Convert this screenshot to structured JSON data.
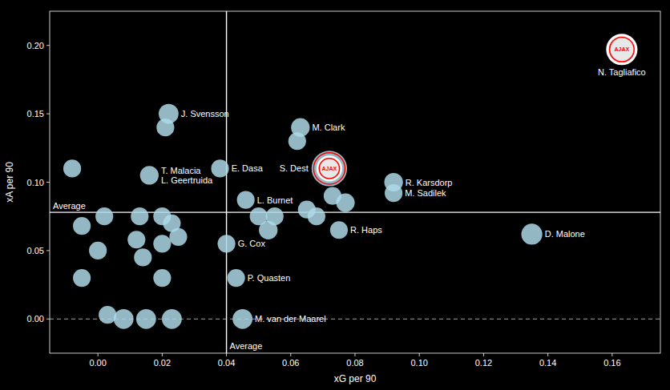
{
  "chart_data": {
    "type": "scatter",
    "xlabel": "xG per 90",
    "ylabel": "xA per 90",
    "xlim": [
      -0.015,
      0.175
    ],
    "ylim": [
      -0.025,
      0.225
    ],
    "xticks": [
      {
        "value": 0,
        "label": "0.00"
      },
      0.02,
      0.04,
      0.06,
      0.08,
      {
        "value": 0.1,
        "label": "0.10"
      },
      0.12,
      0.14,
      0.16
    ],
    "yticks": [
      {
        "value": 0,
        "label": "0.00"
      },
      0.05,
      {
        "value": 0.1,
        "label": "0.10"
      },
      0.15,
      {
        "value": 0.2,
        "label": "0.20"
      }
    ],
    "grid": false,
    "series": [
      {
        "color": "#add8e6",
        "x": [
          -0.008,
          0.002,
          -0.005,
          0,
          -0.005,
          0.003,
          0.008,
          0.013,
          0.012,
          0.014,
          0.016,
          0.015,
          0.02,
          0.02,
          0.02,
          0.022,
          0.021,
          0.023,
          0.025,
          0.023,
          0.038,
          0.04,
          0.043,
          0.045,
          0.046,
          0.05,
          0.053,
          0.055,
          0.063,
          0.062,
          0.065,
          0.068,
          0.075,
          0.073,
          0.077,
          0.092,
          0.092,
          0.135
        ],
        "values": [
          0.11,
          0.075,
          0.068,
          0.05,
          0.03,
          0.003,
          0,
          0.075,
          0.058,
          0.045,
          0.105,
          0,
          0.075,
          0.055,
          0.03,
          0.15,
          0.14,
          0.07,
          0.06,
          0,
          0.11,
          0.055,
          0.03,
          0,
          0.087,
          0.075,
          0.065,
          0.075,
          0.14,
          0.13,
          0.08,
          0.075,
          0.065,
          0.09,
          0.085,
          0.1,
          0.092,
          0.062
        ],
        "sizes": [
          200,
          200,
          200,
          200,
          200,
          200,
          250,
          200,
          200,
          200,
          220,
          250,
          200,
          200,
          200,
          250,
          200,
          200,
          200,
          250,
          200,
          200,
          200,
          250,
          200,
          200,
          220,
          200,
          220,
          200,
          200,
          200,
          200,
          200,
          220,
          220,
          200,
          280
        ],
        "labels": [
          null,
          null,
          null,
          null,
          null,
          null,
          null,
          null,
          null,
          null,
          "T. Malacia\nL. Geertruida",
          null,
          null,
          null,
          null,
          "J. Svensson",
          null,
          null,
          null,
          null,
          "E. Dasa",
          "G. Cox",
          "P. Quasten",
          "M. van der Maarel",
          "L. Burnet",
          null,
          null,
          null,
          "M. Clark",
          null,
          null,
          null,
          "R. Haps",
          null,
          null,
          "R. Karsdorp",
          "M. Sadilek",
          "D. Malone"
        ]
      },
      {
        "color": "#add8e6",
        "x": [
          0.072
        ],
        "values": [
          0.11
        ],
        "sizes": [
          800
        ],
        "labels": [
          "S. Dest"
        ]
      }
    ],
    "reference_lines": [
      {
        "axis": "y",
        "value": 0.078,
        "label": "Average"
      },
      {
        "axis": "x",
        "value": 0.04,
        "label": "Average"
      },
      {
        "axis": "y",
        "value": 0,
        "line_style": "dashed"
      }
    ],
    "logos": [
      {
        "x": 0.163,
        "y": 0.197,
        "text": "AJAX",
        "label": "N. Tagliafico",
        "color": "red"
      },
      {
        "x": 0.072,
        "y": 0.11,
        "text": "AJAX",
        "color": "red"
      }
    ]
  }
}
